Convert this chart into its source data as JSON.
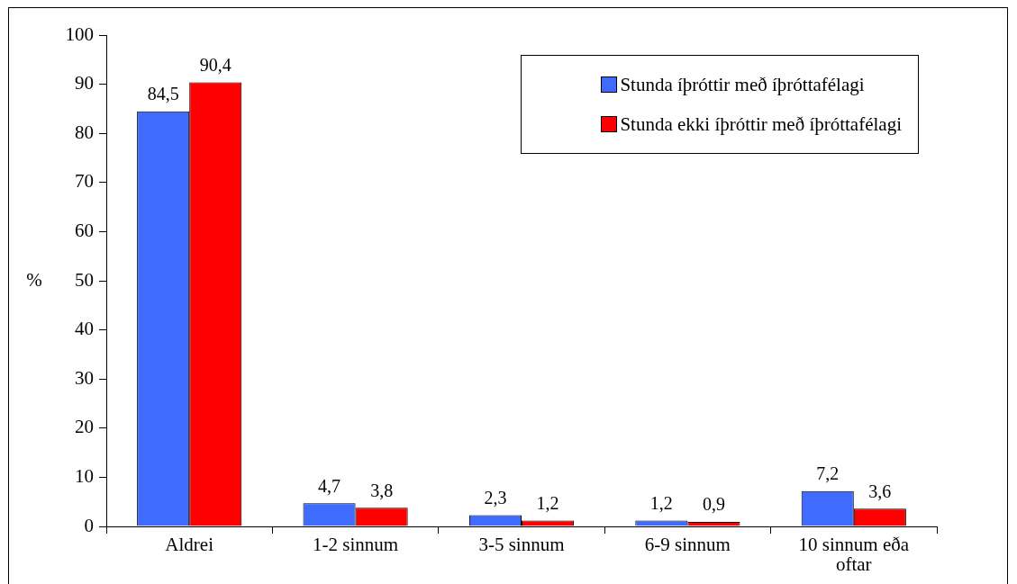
{
  "chart_data": {
    "type": "bar",
    "ylabel": "%",
    "categories": [
      "Aldrei",
      "1-2 sinnum",
      "3-5 sinnum",
      "6-9 sinnum",
      "10 sinnum eða oftar"
    ],
    "series": [
      {
        "name": "Stunda íþróttir með íþróttafélagi",
        "color": "#3f6bff",
        "values": [
          84.5,
          4.7,
          2.3,
          1.2,
          7.2
        ],
        "value_labels": [
          "84,5",
          "4,7",
          "2,3",
          "1,2",
          "7,2"
        ]
      },
      {
        "name": "Stunda ekki íþróttir með íþróttafélagi",
        "color": "#ff0000",
        "values": [
          90.4,
          3.8,
          1.2,
          0.9,
          3.6
        ],
        "value_labels": [
          "90,4",
          "3,8",
          "1,2",
          "0,9",
          "3,6"
        ]
      }
    ],
    "ylim": [
      0,
      100
    ],
    "yticks": [
      0,
      10,
      20,
      30,
      40,
      50,
      60,
      70,
      80,
      90,
      100
    ],
    "grid": false,
    "legend": "top right"
  }
}
